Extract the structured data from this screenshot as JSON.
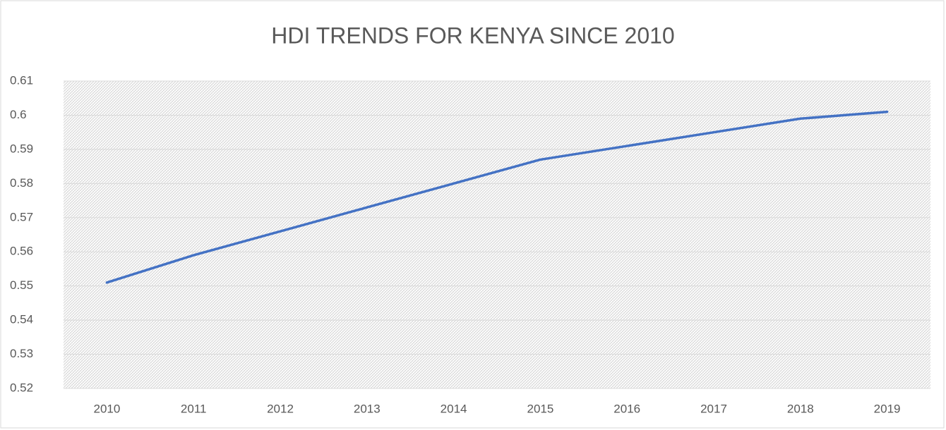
{
  "chart_data": {
    "type": "line",
    "title": "HDI TRENDS FOR KENYA SINCE 2010",
    "categories": [
      "2010",
      "2011",
      "2012",
      "2013",
      "2014",
      "2015",
      "2016",
      "2017",
      "2018",
      "2019"
    ],
    "series": [
      {
        "name": "HDI",
        "color": "#4472c4",
        "values": [
          0.551,
          0.559,
          0.566,
          0.573,
          0.58,
          0.587,
          0.591,
          0.595,
          0.599,
          0.601
        ]
      }
    ],
    "ylim": [
      0.52,
      0.61
    ],
    "yticks": [
      0.52,
      0.53,
      0.54,
      0.55,
      0.56,
      0.57,
      0.58,
      0.59,
      0.6,
      0.61
    ],
    "grid": true
  }
}
